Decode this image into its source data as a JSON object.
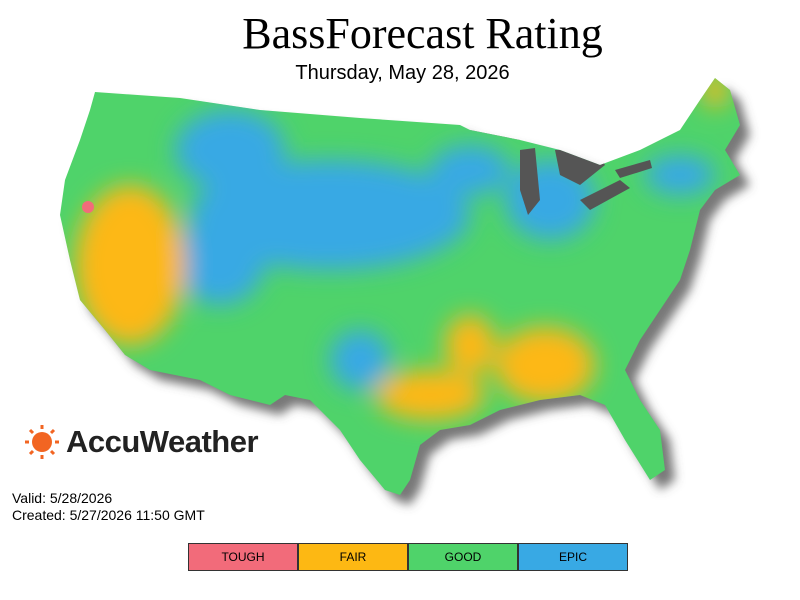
{
  "header": {
    "title": "BassForecast Rating",
    "subtitle": "Thursday, May 28, 2026"
  },
  "brand": "AccuWeather",
  "info": {
    "valid": "Valid: 5/28/2026",
    "created": "Created: 5/27/2026 11:50 GMT"
  },
  "legend": [
    {
      "label": "TOUGH",
      "color": "#f26b7a"
    },
    {
      "label": "FAIR",
      "color": "#fdb813"
    },
    {
      "label": "GOOD",
      "color": "#4fd36a"
    },
    {
      "label": "EPIC",
      "color": "#38a9e4"
    }
  ]
}
